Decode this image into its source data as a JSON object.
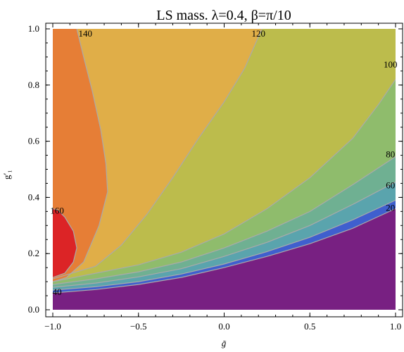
{
  "chart_data": {
    "type": "contour",
    "title": "LS mass. λ=0.4, β=π/10",
    "xlabel": "g̃",
    "ylabel": "g′₁",
    "xlim": [
      -1.0,
      1.0
    ],
    "ylim": [
      0.0,
      1.0
    ],
    "x_ticks": [
      "−1.0",
      "−0.5",
      "0.0",
      "0.5",
      "1.0"
    ],
    "y_ticks": [
      "0.0",
      "0.2",
      "0.4",
      "0.6",
      "0.8",
      "1.0"
    ],
    "levels": [
      20,
      40,
      60,
      80,
      100,
      120,
      140,
      160
    ],
    "colors": {
      "below_20": "#782082",
      "20_40": "#3f5fce",
      "40_60": "#5aa4ad",
      "60_80": "#6fb092",
      "80_100": "#8fbc6c",
      "100_120": "#bcbc4c",
      "120_140": "#e0ae48",
      "140_160": "#e67e36",
      "above_160": "#dc2426",
      "contour_line": "#aaaaaa"
    },
    "contour_labels": [
      {
        "text": "140",
        "x": -0.81,
        "y": 0.985
      },
      {
        "text": "120",
        "x": 0.2,
        "y": 0.985
      },
      {
        "text": "100",
        "x": 0.97,
        "y": 0.875
      },
      {
        "text": "80",
        "x": 0.97,
        "y": 0.555
      },
      {
        "text": "60",
        "x": 0.97,
        "y": 0.445
      },
      {
        "text": "20",
        "x": 0.97,
        "y": 0.365
      },
      {
        "text": "160",
        "x": -0.975,
        "y": 0.355
      },
      {
        "text": "40",
        "x": -0.975,
        "y": 0.065
      }
    ],
    "contours": {
      "c20": [
        [
          -1.0,
          0.06
        ],
        [
          -0.75,
          0.072
        ],
        [
          -0.5,
          0.09
        ],
        [
          -0.25,
          0.115
        ],
        [
          0.0,
          0.15
        ],
        [
          0.25,
          0.19
        ],
        [
          0.5,
          0.235
        ],
        [
          0.75,
          0.29
        ],
        [
          1.0,
          0.36
        ]
      ],
      "c40": [
        [
          -1.0,
          0.07
        ],
        [
          -0.75,
          0.082
        ],
        [
          -0.5,
          0.1
        ],
        [
          -0.25,
          0.127
        ],
        [
          0.0,
          0.163
        ],
        [
          0.25,
          0.207
        ],
        [
          0.5,
          0.258
        ],
        [
          0.75,
          0.32
        ],
        [
          1.0,
          0.39
        ]
      ],
      "c60": [
        [
          -1.0,
          0.08
        ],
        [
          -0.75,
          0.095
        ],
        [
          -0.5,
          0.117
        ],
        [
          -0.25,
          0.146
        ],
        [
          0.0,
          0.19
        ],
        [
          0.25,
          0.24
        ],
        [
          0.5,
          0.3
        ],
        [
          0.75,
          0.375
        ],
        [
          1.0,
          0.455
        ]
      ],
      "c80": [
        [
          -1.0,
          0.09
        ],
        [
          -0.75,
          0.11
        ],
        [
          -0.5,
          0.135
        ],
        [
          -0.25,
          0.17
        ],
        [
          0.0,
          0.22
        ],
        [
          0.25,
          0.28
        ],
        [
          0.5,
          0.35
        ],
        [
          0.75,
          0.445
        ],
        [
          1.0,
          0.545
        ]
      ],
      "c100": [
        [
          -1.0,
          0.1
        ],
        [
          -0.75,
          0.13
        ],
        [
          -0.5,
          0.16
        ],
        [
          -0.25,
          0.205
        ],
        [
          0.0,
          0.27
        ],
        [
          0.25,
          0.36
        ],
        [
          0.5,
          0.47
        ],
        [
          0.75,
          0.61
        ],
        [
          0.9,
          0.73
        ],
        [
          1.0,
          0.82
        ]
      ],
      "c120": [
        [
          -1.0,
          0.11
        ],
        [
          -0.75,
          0.155
        ],
        [
          -0.6,
          0.23
        ],
        [
          -0.45,
          0.34
        ],
        [
          -0.3,
          0.47
        ],
        [
          -0.15,
          0.61
        ],
        [
          0.0,
          0.74
        ],
        [
          0.12,
          0.86
        ],
        [
          0.22,
          1.0
        ]
      ],
      "c140": [
        [
          -1.0,
          0.1
        ],
        [
          -0.92,
          0.115
        ],
        [
          -0.82,
          0.17
        ],
        [
          -0.73,
          0.3
        ],
        [
          -0.68,
          0.42
        ],
        [
          -0.69,
          0.52
        ],
        [
          -0.72,
          0.64
        ],
        [
          -0.77,
          0.78
        ],
        [
          -0.82,
          0.9
        ],
        [
          -0.86,
          1.0
        ]
      ],
      "c160": [
        [
          -1.0,
          0.115
        ],
        [
          -0.93,
          0.13
        ],
        [
          -0.88,
          0.17
        ],
        [
          -0.86,
          0.22
        ],
        [
          -0.88,
          0.28
        ],
        [
          -0.93,
          0.33
        ],
        [
          -0.97,
          0.355
        ],
        [
          -1.0,
          0.36
        ]
      ]
    }
  }
}
